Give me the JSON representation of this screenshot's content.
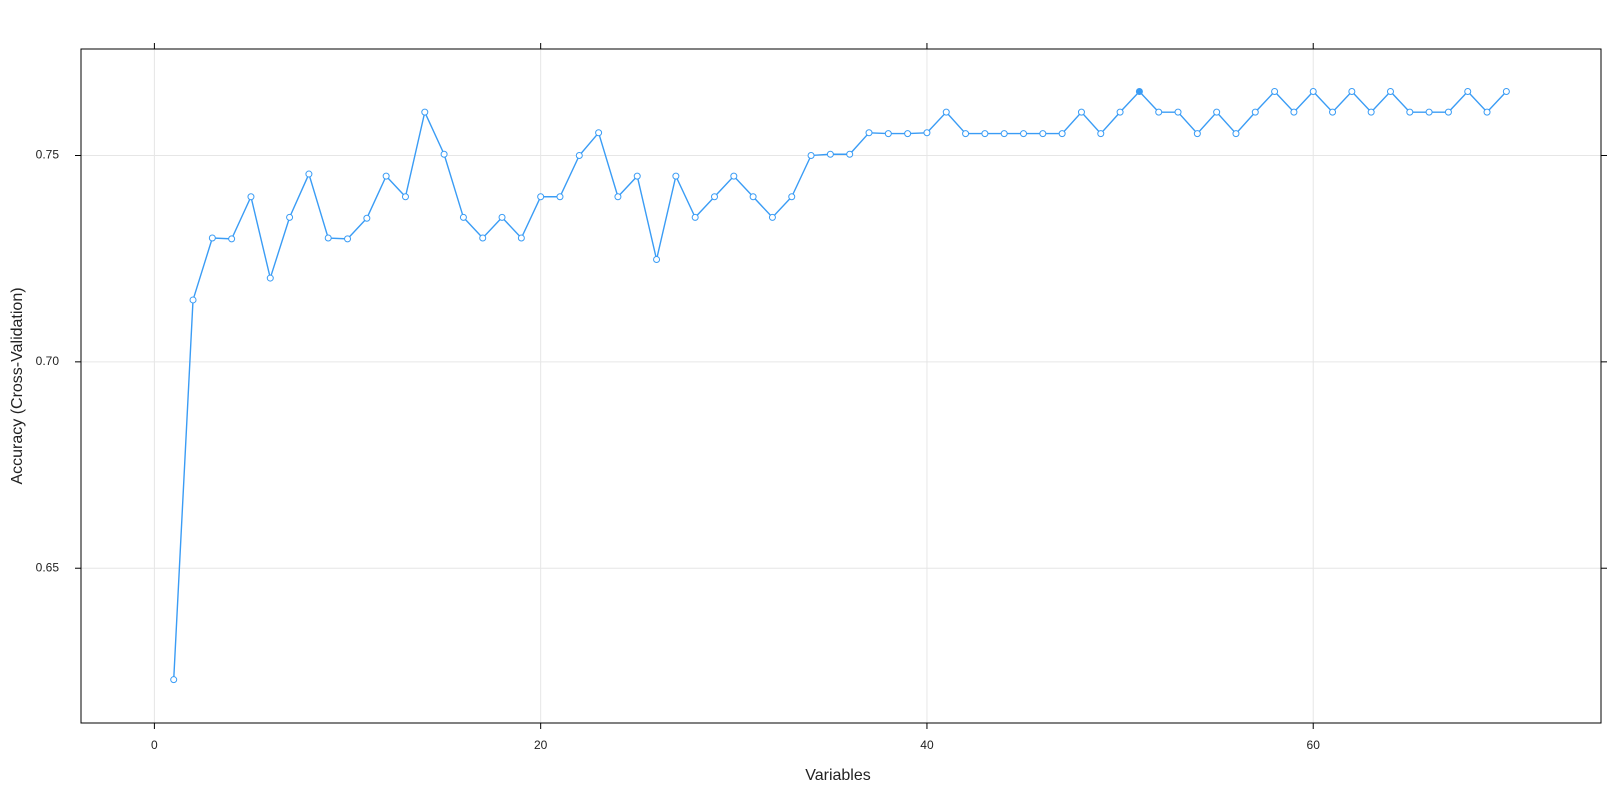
{
  "chart_data": {
    "type": "line",
    "x_label": "Variables",
    "y_label": "Accuracy (Cross-Validation)",
    "x": [
      1,
      2,
      3,
      4,
      5,
      6,
      7,
      8,
      9,
      10,
      11,
      12,
      13,
      14,
      15,
      16,
      17,
      18,
      19,
      20,
      21,
      22,
      23,
      24,
      25,
      26,
      27,
      28,
      29,
      30,
      31,
      32,
      33,
      34,
      35,
      36,
      37,
      38,
      39,
      40,
      41,
      42,
      43,
      44,
      45,
      46,
      47,
      48,
      49,
      50,
      51,
      52,
      53,
      54,
      55,
      56,
      57,
      58,
      59,
      60,
      61,
      62,
      63,
      64,
      65,
      66,
      67,
      68,
      69,
      70
    ],
    "series": [
      {
        "color": "#3a9cf5",
        "values": [
          0.623,
          0.715,
          0.73,
          0.7298,
          0.74,
          0.7203,
          0.735,
          0.7455,
          0.73,
          0.7298,
          0.7348,
          0.745,
          0.74,
          0.7605,
          0.7503,
          0.735,
          0.73,
          0.735,
          0.73,
          0.74,
          0.74,
          0.75,
          0.7555,
          0.74,
          0.745,
          0.7248,
          0.745,
          0.735,
          0.74,
          0.745,
          0.74,
          0.735,
          0.74,
          0.75,
          0.7503,
          0.7503,
          0.7555,
          0.7553,
          0.7553,
          0.7555,
          0.7605,
          0.7553,
          0.7553,
          0.7553,
          0.7553,
          0.7553,
          0.7553,
          0.7605,
          0.7553,
          0.7605,
          0.7655,
          0.7605,
          0.7605,
          0.7553,
          0.7605,
          0.7553,
          0.7605,
          0.7655,
          0.7605,
          0.7655,
          0.7605,
          0.7655,
          0.7605,
          0.7655,
          0.7605,
          0.7605,
          0.7605,
          0.7655,
          0.7605,
          0.7655
        ]
      }
    ],
    "xlim": [
      -3.8,
      74.9
    ],
    "ylim": [
      0.6125,
      0.7758
    ],
    "xticks": [
      0,
      20,
      40,
      60
    ],
    "yticks": [
      0.65,
      {
        "value": 0.7,
        "label": "0.70"
      },
      0.75
    ],
    "grid": true
  }
}
